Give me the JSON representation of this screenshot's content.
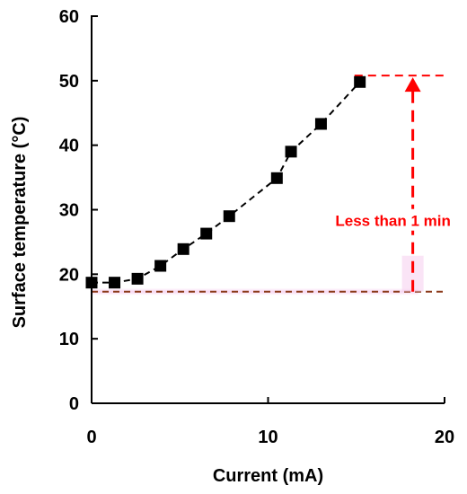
{
  "chart_data": {
    "type": "scatter",
    "xlabel": "Current (mA)",
    "ylabel": "Surface temperature (°C)",
    "xlim": [
      0,
      20
    ],
    "ylim": [
      0,
      60
    ],
    "x_ticks": [
      "0",
      "10",
      "20"
    ],
    "y_ticks": [
      "0",
      "10",
      "20",
      "30",
      "40",
      "50",
      "60"
    ],
    "grid": false,
    "series": [
      {
        "marker": "square",
        "color": "#000000",
        "line": "dashed",
        "x": [
          0,
          1.3,
          2.6,
          3.9,
          5.2,
          6.5,
          7.8,
          10.5,
          11.3,
          13.0,
          15.2
        ],
        "y": [
          18.7,
          18.7,
          19.3,
          21.3,
          23.9,
          26.3,
          29.0,
          34.9,
          39.0,
          43.3,
          49.8
        ]
      }
    ],
    "reference_lines": [
      {
        "type": "horizontal",
        "y": 17.3,
        "color": "#8B3A1A",
        "style": "dashed"
      },
      {
        "type": "horizontal",
        "y": 50.8,
        "x_from": 14.9,
        "color": "#FF0000",
        "style": "dashed"
      }
    ],
    "annotation": {
      "text": "Less than 1 min",
      "color": "#FF0000",
      "arrow_x": 18.2,
      "arrow_from_y": 17.3,
      "arrow_to_y": 50.8
    }
  }
}
